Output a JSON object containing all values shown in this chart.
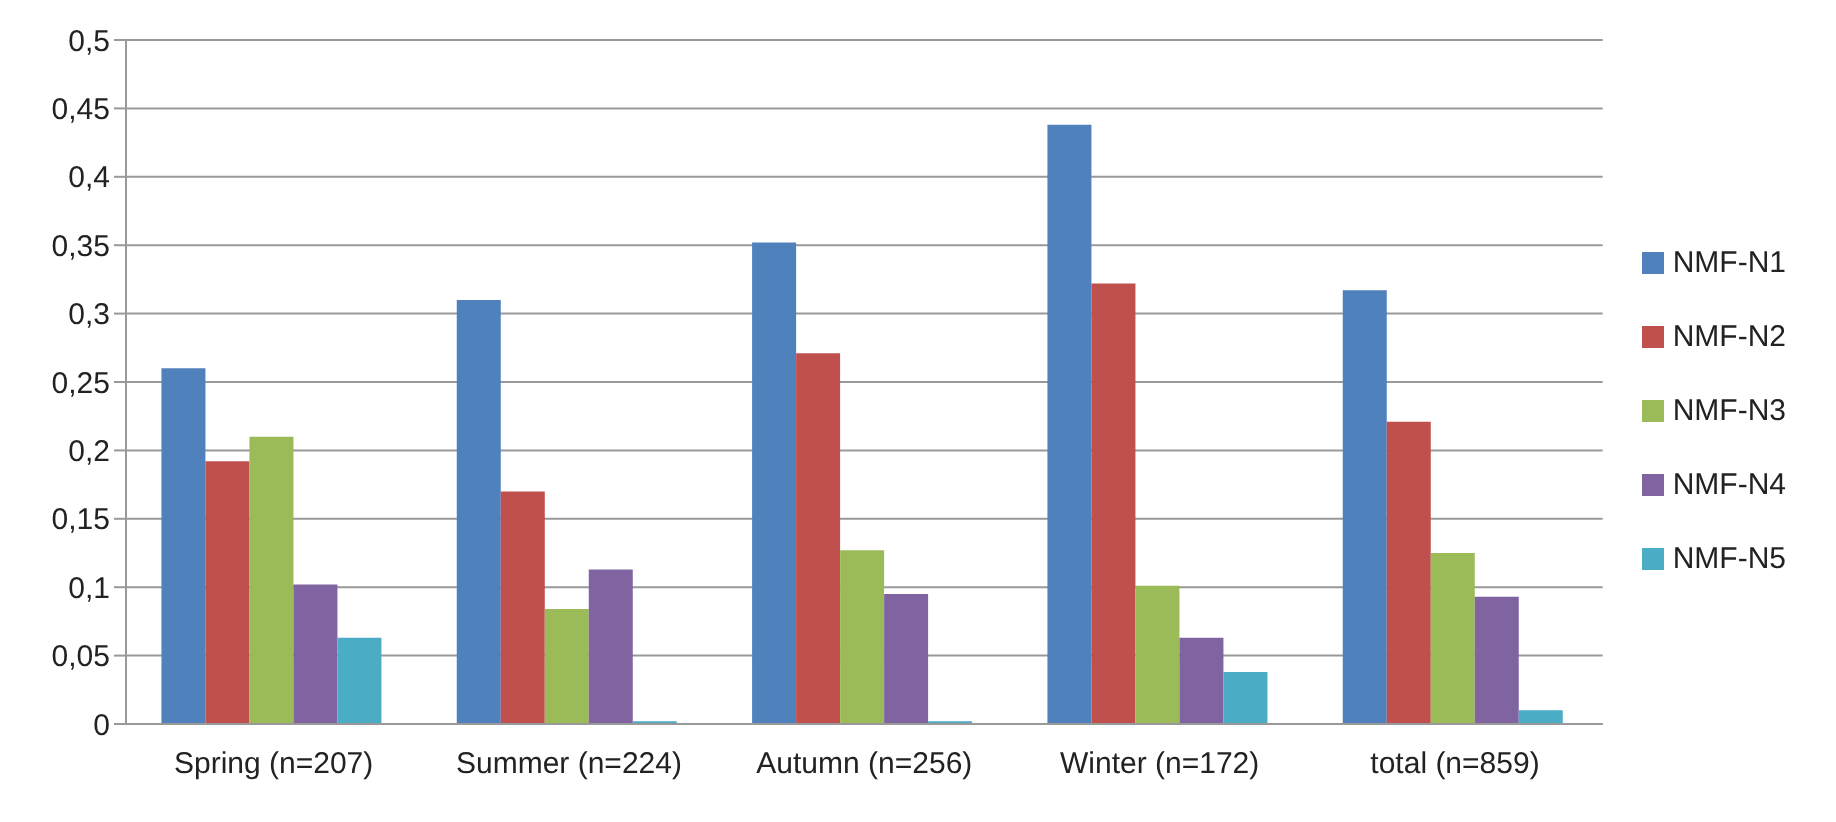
{
  "chart_data": {
    "type": "bar",
    "categories": [
      "Spring (n=207)",
      "Summer (n=224)",
      "Autumn (n=256)",
      "Winter (n=172)",
      "total (n=859)"
    ],
    "series": [
      {
        "name": "NMF-N1",
        "color": "#4f81bd",
        "values": [
          0.26,
          0.31,
          0.352,
          0.438,
          0.317
        ]
      },
      {
        "name": "NMF-N2",
        "color": "#c0504d",
        "values": [
          0.192,
          0.17,
          0.271,
          0.322,
          0.221
        ]
      },
      {
        "name": "NMF-N3",
        "color": "#9bbb59",
        "values": [
          0.21,
          0.084,
          0.127,
          0.101,
          0.125
        ]
      },
      {
        "name": "NMF-N4",
        "color": "#8064a2",
        "values": [
          0.102,
          0.113,
          0.095,
          0.063,
          0.093
        ]
      },
      {
        "name": "NMF-N5",
        "color": "#4bacc6",
        "values": [
          0.063,
          0.002,
          0.002,
          0.038,
          0.01
        ]
      }
    ],
    "ylim": [
      0,
      0.5
    ],
    "yticks": [
      0,
      {
        "value": 0.05,
        "label": "0,05"
      },
      {
        "value": 0.1,
        "label": "0,1"
      },
      {
        "value": 0.15,
        "label": "0,15"
      },
      {
        "value": 0.2,
        "label": "0,2"
      },
      {
        "value": 0.25,
        "label": "0,25"
      },
      {
        "value": 0.3,
        "label": "0,3"
      },
      {
        "value": 0.35,
        "label": "0,35"
      },
      {
        "value": 0.4,
        "label": "0,4"
      },
      {
        "value": 0.45,
        "label": "0,45"
      },
      {
        "value": 0.5,
        "label": "0,5"
      }
    ],
    "grid": "y",
    "legend": "right"
  }
}
